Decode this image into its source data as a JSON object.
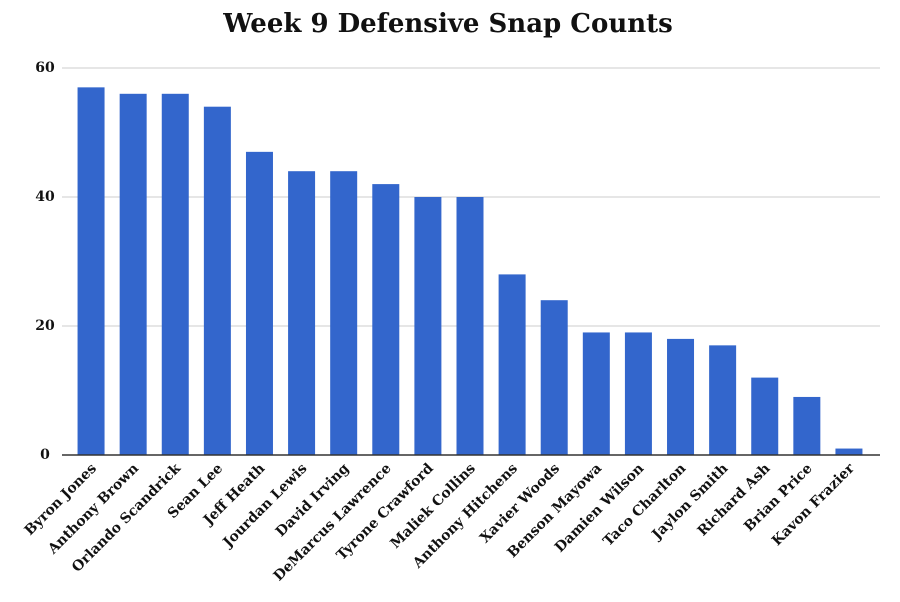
{
  "chart_data": {
    "type": "bar",
    "title": "Week 9 Defensive Snap Counts",
    "categories": [
      "Byron Jones",
      "Anthony Brown",
      "Orlando Scandrick",
      "Sean Lee",
      "Jeff Heath",
      "Jourdan Lewis",
      "David Irving",
      "DeMarcus Lawrence",
      "Tyrone Crawford",
      "Maliek Collins",
      "Anthony Hitchens",
      "Xavier Woods",
      "Benson Mayowa",
      "Damien Wilson",
      "Taco Charlton",
      "Jaylon Smith",
      "Richard Ash",
      "Brian Price",
      "Kavon Frazier"
    ],
    "values": [
      57,
      56,
      56,
      54,
      47,
      44,
      44,
      42,
      40,
      40,
      28,
      24,
      19,
      19,
      18,
      17,
      12,
      9,
      1
    ],
    "color": "#3366cc",
    "ylim": [
      0,
      60
    ],
    "yticks": [
      0,
      20,
      40,
      60
    ],
    "grid": true
  }
}
